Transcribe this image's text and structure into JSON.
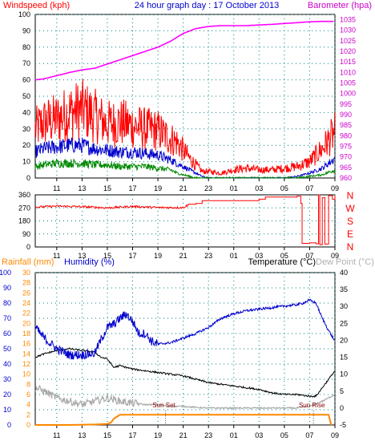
{
  "colors": {
    "wind_axis": "#ff0000",
    "baro_axis": "#cc00cc",
    "header_blue": "#0000cc",
    "rain_axis": "#ff8800",
    "hum_axis": "#0000cc",
    "temp_axis": "#000000",
    "dew_axis": "#b0b0b0",
    "gust": "#ff0000",
    "avg": "#0000cc",
    "low": "#008800",
    "baro": "#ff00ff",
    "dir": "#ff0000",
    "humidity": "#0000cc",
    "temperature": "#000000",
    "dewpoint": "#aaaaaa",
    "rainfall": "#ff8800",
    "grid": "#008080"
  },
  "chart_data": [
    {
      "type": "line",
      "title": "24 hour graph day : 17 October 2013",
      "ylabel_left": "Windspeed (kph)",
      "ylabel_right": "Barometer (hpa)",
      "x_ticks": [
        "11",
        "13",
        "15",
        "17",
        "19",
        "21",
        "23",
        "01",
        "03",
        "05",
        "07",
        "09"
      ],
      "y_left_ticks": [
        0,
        10,
        20,
        30,
        40,
        50,
        60,
        70,
        80,
        90,
        100
      ],
      "y_right_ticks": [
        960,
        965,
        970,
        975,
        980,
        985,
        990,
        995,
        1000,
        1005,
        1010,
        1015,
        1020,
        1025,
        1030,
        1035
      ],
      "ylim_left": [
        0,
        100
      ],
      "ylim_right": [
        960,
        1037.5
      ],
      "grid": true,
      "series": [
        {
          "key": "baro",
          "axis": "right",
          "x": [
            9.3,
            10,
            11,
            12,
            13,
            14,
            15,
            16,
            17,
            18,
            19,
            20,
            21,
            22,
            23,
            24,
            25,
            26,
            27,
            28,
            29,
            30,
            31,
            32,
            33
          ],
          "values": [
            1006.5,
            1007,
            1008.5,
            1010,
            1011.2,
            1012,
            1014,
            1016,
            1018,
            1020,
            1022,
            1024.8,
            1028.5,
            1030.8,
            1031.8,
            1032.2,
            1032.2,
            1032.2,
            1032.5,
            1032.8,
            1033.2,
            1033.6,
            1034,
            1034.2,
            1034.2
          ]
        },
        {
          "key": "gust",
          "axis": "left",
          "x": [
            9.3,
            10,
            11,
            12,
            13,
            14,
            15,
            16,
            17,
            18,
            19,
            20,
            20.5,
            21,
            21.5,
            22,
            22.5,
            23,
            24,
            25,
            26,
            27,
            28,
            29,
            30,
            31,
            32,
            33
          ],
          "values": [
            30,
            34,
            36,
            40,
            42,
            38,
            33,
            34,
            32,
            30,
            29,
            24,
            22,
            17,
            12,
            8,
            4,
            4,
            3,
            5,
            6,
            5,
            5,
            6,
            7,
            10,
            18,
            28
          ]
        },
        {
          "key": "avg",
          "axis": "left",
          "x": [
            9.3,
            10,
            11,
            12,
            13,
            14,
            15,
            16,
            17,
            18,
            19,
            20,
            20.5,
            21,
            21.5,
            22,
            22.5,
            23,
            24,
            25,
            26,
            27,
            28,
            29,
            30,
            31,
            32,
            33
          ],
          "values": [
            16,
            18,
            19,
            20,
            20,
            18,
            17,
            16,
            16,
            15,
            14,
            11,
            9,
            7,
            5,
            3,
            1,
            0,
            0,
            0,
            0,
            0,
            0,
            0,
            1,
            3,
            6,
            12
          ]
        },
        {
          "key": "low",
          "axis": "left",
          "x": [
            9.3,
            10,
            11,
            12,
            13,
            14,
            15,
            16,
            17,
            18,
            19,
            20,
            20.5,
            21,
            21.5,
            22,
            22.5,
            23,
            24,
            25,
            26,
            27,
            28,
            29,
            30,
            31,
            32,
            33
          ],
          "values": [
            7,
            8,
            9,
            9,
            9,
            8,
            8,
            7,
            7,
            7,
            6,
            5,
            3,
            2,
            1,
            0,
            0,
            0,
            0,
            0,
            0,
            0,
            0,
            0,
            0,
            1,
            2,
            5
          ]
        }
      ]
    },
    {
      "type": "line",
      "ylabel_right": "Wind direction",
      "compass": [
        "N",
        "W",
        "S",
        "E",
        "N"
      ],
      "y_left_ticks": [
        0,
        90,
        180,
        270,
        360
      ],
      "ylim": [
        0,
        360
      ],
      "grid": true,
      "series": [
        {
          "key": "dir",
          "x": [
            9.3,
            11,
            13,
            15,
            17,
            19,
            21,
            21.5,
            22,
            22.5,
            27,
            27.5,
            30,
            30.3,
            30.4,
            31,
            31.5,
            31.7,
            31.8,
            32,
            32.2,
            32.5,
            32.8,
            33
          ],
          "values": [
            275,
            282,
            278,
            270,
            280,
            272,
            272,
            295,
            300,
            320,
            330,
            345,
            350,
            300,
            25,
            28,
            22,
            360,
            15,
            340,
            20,
            355,
            330,
            355
          ]
        }
      ]
    },
    {
      "type": "line",
      "ylabel_left_1": "Rainfall (mm)",
      "ylabel_left_2": "Humidity (%)",
      "ylabel_right_1": "Temperature (°C)",
      "ylabel_right_2": "Dew Point (°C)",
      "annotations": [
        "Sun Set",
        "Sun Rise"
      ],
      "hum_ticks": [
        0,
        10,
        20,
        30,
        40,
        50,
        60,
        70,
        80,
        90,
        100
      ],
      "rain_ticks": [
        0,
        2,
        4,
        6,
        8,
        10,
        12,
        14,
        16,
        18,
        20,
        22,
        24,
        26,
        28,
        30
      ],
      "temp_ticks": [
        -5,
        0,
        5,
        10,
        15,
        20,
        25,
        30,
        35,
        40
      ],
      "grid": true,
      "series": [
        {
          "key": "humidity",
          "axis": "hum",
          "x": [
            9.3,
            10,
            11,
            12,
            13,
            14,
            14.5,
            15,
            15.5,
            16,
            16.5,
            17,
            17.5,
            18,
            18.5,
            19,
            20,
            21,
            22,
            23,
            24,
            25,
            26,
            27,
            28,
            29,
            30,
            30.5,
            31,
            31.5,
            32,
            32.5,
            33
          ],
          "values": [
            64,
            57,
            50,
            46,
            46,
            47,
            56,
            64,
            66,
            70,
            73,
            68,
            60,
            60,
            55,
            53,
            54,
            57,
            60,
            64,
            70,
            73,
            75,
            76,
            77,
            78,
            79,
            80,
            82,
            80,
            70,
            62,
            55
          ]
        },
        {
          "key": "temperature",
          "axis": "temp",
          "x": [
            9.3,
            10,
            11,
            12,
            13,
            14,
            14.5,
            15,
            15.5,
            16,
            17,
            18,
            19,
            20,
            21,
            22,
            23,
            24,
            25,
            26,
            27,
            28,
            29,
            30,
            31,
            31.5,
            32,
            33
          ],
          "values": [
            15,
            16,
            17,
            17.5,
            17,
            16.5,
            15,
            14.5,
            12,
            12.5,
            11.5,
            11,
            10.5,
            10,
            9.5,
            8.5,
            7.5,
            7,
            6.5,
            6,
            5.5,
            4.5,
            4,
            4,
            3.5,
            3.5,
            6,
            11
          ]
        },
        {
          "key": "dewpoint",
          "axis": "temp",
          "x": [
            9.3,
            10,
            11,
            12,
            13,
            14,
            15,
            16,
            17,
            18,
            19,
            20,
            21,
            22,
            23,
            24,
            25,
            26,
            27,
            28,
            29,
            30,
            31,
            32,
            33
          ],
          "values": [
            6,
            5,
            3,
            2,
            1,
            2,
            3,
            2,
            1.5,
            1,
            1,
            0.5,
            0.5,
            0.2,
            0,
            0,
            0,
            0,
            0,
            0,
            0,
            0,
            0.5,
            2,
            4
          ]
        },
        {
          "key": "rainfall",
          "axis": "rain",
          "x": [
            9.3,
            12,
            14,
            15,
            15.3,
            15.5,
            16,
            18,
            20,
            24,
            28,
            30,
            31.5,
            32.5,
            32.7
          ],
          "values": [
            0,
            0,
            0.1,
            0.2,
            0.5,
            1.2,
            2,
            2,
            2,
            2,
            2,
            2,
            2,
            2,
            0
          ]
        }
      ],
      "events": [
        {
          "label": "Sun Set",
          "x": 19.6
        },
        {
          "label": "Sun Rise",
          "x": 31.3
        }
      ]
    }
  ]
}
